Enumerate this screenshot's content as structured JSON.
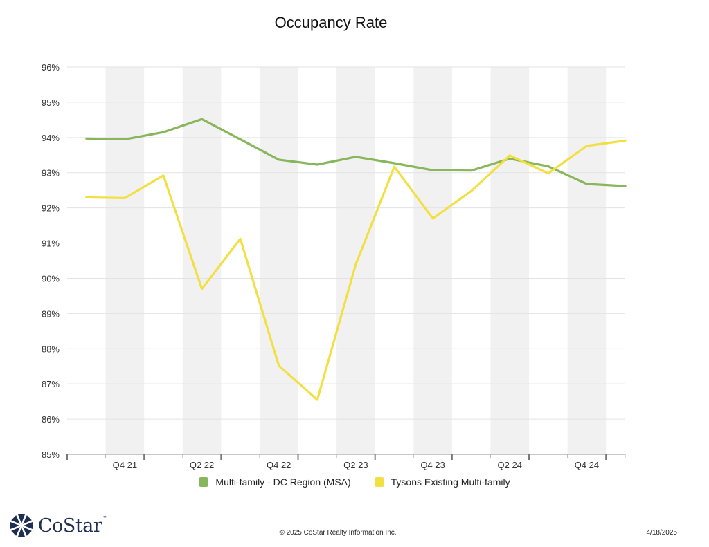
{
  "colors": {
    "series_green": "#88b65b",
    "series_yellow": "#f2e043",
    "band": "#f1f1f1",
    "grid": "#e3e3e3",
    "axis": "#b5b5b5",
    "logo_blue": "#1e2f53"
  },
  "logo": {
    "text": "CoStar",
    "tm": "™",
    "icon": "costar-star-icon"
  },
  "footer": {
    "copyright": "© 2025 CoStar Realty Information Inc.",
    "date": "4/18/2025"
  },
  "chart_data": {
    "type": "line",
    "title": "Occupancy Rate",
    "xlabel": "",
    "ylabel": "",
    "ylim": [
      85,
      96
    ],
    "y_ticks": [
      85,
      86,
      87,
      88,
      89,
      90,
      91,
      92,
      93,
      94,
      95,
      96
    ],
    "y_tick_suffix": "%",
    "x": [
      "Q3 21",
      "Q4 21",
      "Q1 22",
      "Q2 22",
      "Q3 22",
      "Q4 22",
      "Q1 23",
      "Q2 23",
      "Q3 23",
      "Q4 23",
      "Q1 24",
      "Q2 24",
      "Q3 24",
      "Q4 24",
      "Q1 25"
    ],
    "x_tick_labels": [
      "Q4 21",
      "Q2 22",
      "Q4 22",
      "Q2 23",
      "Q4 23",
      "Q2 24",
      "Q4 24"
    ],
    "grid": true,
    "legend": "bottom",
    "series": [
      {
        "name": "Multi-family - DC Region (MSA)",
        "color": "#88b65b",
        "values": [
          93.97,
          93.95,
          94.15,
          94.52,
          93.95,
          93.37,
          93.23,
          93.45,
          93.27,
          93.07,
          93.06,
          93.4,
          93.18,
          92.68,
          92.62
        ]
      },
      {
        "name": "Tysons Existing Multi-family",
        "color": "#f2e043",
        "values": [
          92.3,
          92.28,
          92.92,
          89.7,
          91.12,
          87.52,
          86.55,
          90.4,
          93.17,
          91.7,
          92.48,
          93.49,
          92.98,
          93.76,
          93.91
        ]
      }
    ]
  }
}
